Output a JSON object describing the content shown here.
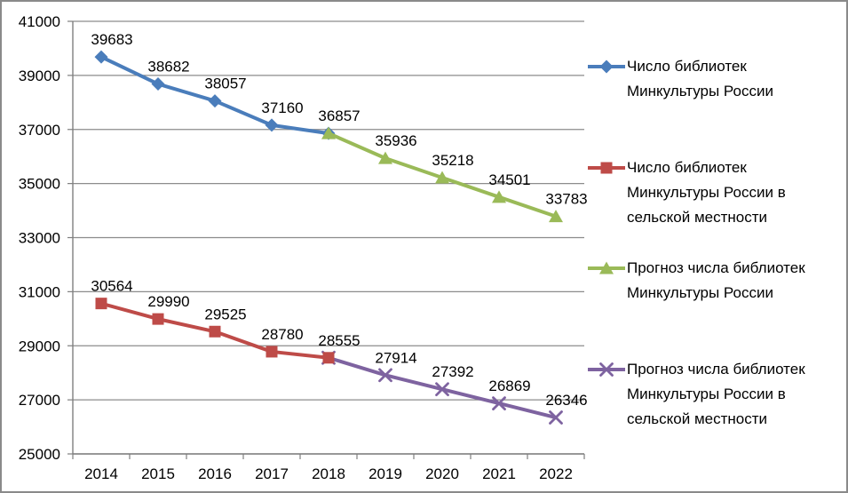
{
  "chart_data": {
    "type": "line",
    "title": "",
    "xlabel": "",
    "ylabel": "",
    "x_categories": [
      "2014",
      "2015",
      "2016",
      "2017",
      "2018",
      "2019",
      "2020",
      "2021",
      "2022"
    ],
    "y_ticks": [
      25000,
      27000,
      29000,
      31000,
      33000,
      35000,
      37000,
      39000,
      41000
    ],
    "ylim": [
      25000,
      41000
    ],
    "grid": true,
    "legend_position": "right",
    "colors": {
      "grid": "#8c8c8c",
      "axis": "#7f7f7f",
      "label_text": "#000000",
      "background": "#ffffff"
    },
    "series": [
      {
        "name": "Число библиотек Минкультуры России",
        "marker": "diamond",
        "color": "#4a7dbb",
        "start_index": 0,
        "values": [
          39683,
          38682,
          38057,
          37160,
          36857
        ],
        "point_labels": [
          "39683",
          "38682",
          "38057",
          "37160",
          ""
        ],
        "legend_lines": [
          "Число библиотек",
          "Минкультуры России"
        ]
      },
      {
        "name": "Число библиотек Минкультуры России в сельской местности",
        "marker": "square",
        "color": "#be4b48",
        "start_index": 0,
        "values": [
          30564,
          29990,
          29525,
          28780,
          28555
        ],
        "point_labels": [
          "30564",
          "29990",
          "29525",
          "28780",
          "28555"
        ],
        "legend_lines": [
          "Число библиотек",
          "Минкультуры России в",
          "сельской местности"
        ]
      },
      {
        "name": "Прогноз числа библиотек Минкультуры России",
        "marker": "triangle",
        "color": "#9aba58",
        "start_index": 4,
        "values": [
          36857,
          35936,
          35218,
          34501,
          33783
        ],
        "point_labels": [
          "36857",
          "35936",
          "35218",
          "34501",
          "33783"
        ],
        "legend_lines": [
          "Прогноз числа библиотек",
          "Минкультуры России"
        ]
      },
      {
        "name": "Прогноз числа библиотек Минкультуры России в сельской местности",
        "marker": "x",
        "color": "#7e63a0",
        "start_index": 4,
        "values": [
          28555,
          27914,
          27392,
          26869,
          26346
        ],
        "point_labels": [
          "",
          "27914",
          "27392",
          "26869",
          "26346"
        ],
        "legend_lines": [
          "Прогноз числа библиотек",
          "Минкультуры России в",
          "сельской местности"
        ]
      }
    ]
  }
}
